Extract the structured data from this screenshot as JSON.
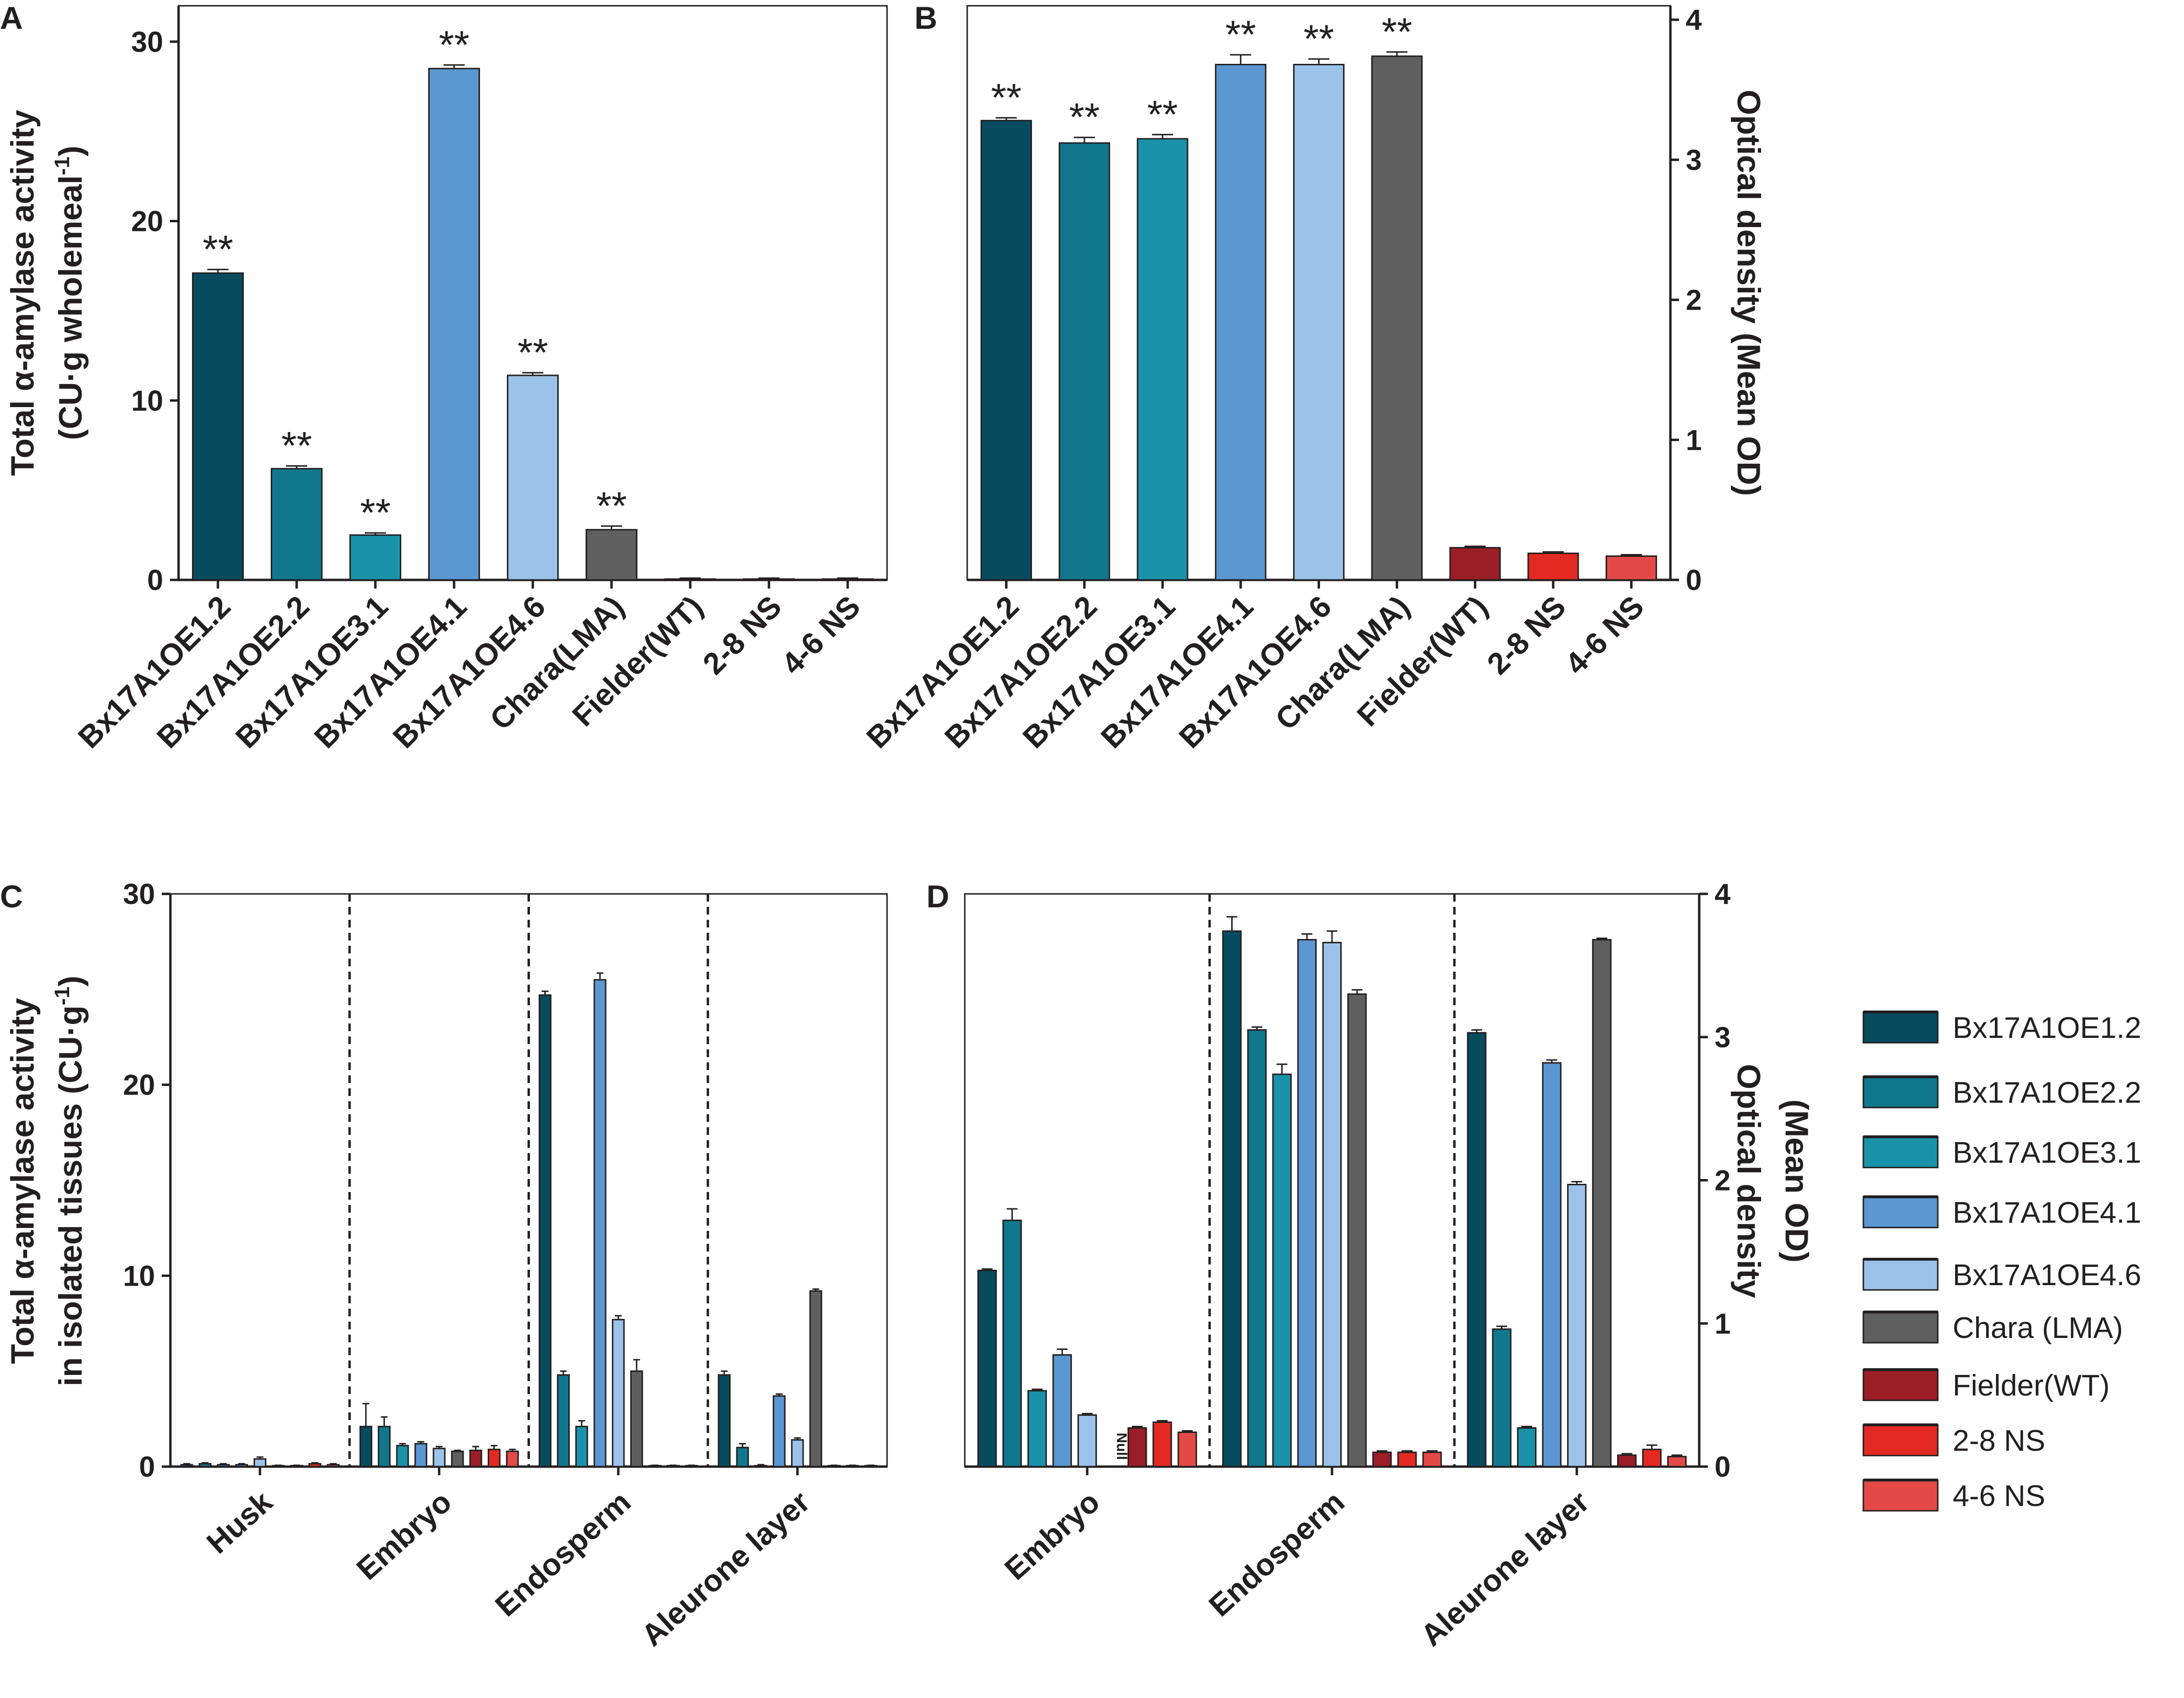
{
  "colors": {
    "Bx17A1OE1.2": "#074b5e",
    "Bx17A1OE2.2": "#11778c",
    "Bx17A1OE3.1": "#1a93aa",
    "Bx17A1OE4.1": "#5b97d1",
    "Bx17A1OE4.6": "#9bc2e8",
    "Chara(LMA)": "#5f5f5f",
    "Fielder(WT)": "#9b1d25",
    "2-8 NS": "#e32a22",
    "4-6 NS": "#e34a47",
    "axis": "#231f20"
  },
  "legend": {
    "items": [
      {
        "label": "Bx17A1OE1.2",
        "color": "#074b5e"
      },
      {
        "label": "Bx17A1OE2.2",
        "color": "#11778c"
      },
      {
        "label": "Bx17A1OE3.1",
        "color": "#1a93aa"
      },
      {
        "label": "Bx17A1OE4.1",
        "color": "#5b97d1"
      },
      {
        "label": "Bx17A1OE4.6",
        "color": "#9bc2e8"
      },
      {
        "label": "Chara (LMA)",
        "color": "#5f5f5f"
      },
      {
        "label": "Fielder(WT)",
        "color": "#9b1d25"
      },
      {
        "label": "2-8 NS",
        "color": "#e32a22"
      },
      {
        "label": "4-6 NS",
        "color": "#e34a47"
      }
    ]
  },
  "chart_data": [
    {
      "panel": "A",
      "type": "bar",
      "ylabel_line1": "Total α-amylase activity",
      "ylabel_line2": "(CU·g wholemeal",
      "ylabel_sup": "-1",
      "ylabel_close": ")",
      "yaxis_side": "left",
      "ylim": [
        0,
        32
      ],
      "yticks": [
        0,
        10,
        20,
        30
      ],
      "categories": [
        "Bx17A1OE1.2",
        "Bx17A1OE2.2",
        "Bx17A1OE3.1",
        "Bx17A1OE4.1",
        "Bx17A1OE4.6",
        "Chara(LMA)",
        "Fielder(WT)",
        "2-8 NS",
        "4-6 NS"
      ],
      "values": [
        17.1,
        6.2,
        2.5,
        28.5,
        11.4,
        2.8,
        0.05,
        0.05,
        0.05
      ],
      "errors": [
        0.2,
        0.15,
        0.12,
        0.2,
        0.15,
        0.2,
        0.05,
        0.05,
        0.05
      ],
      "significance": [
        "**",
        "**",
        "**",
        "**",
        "**",
        "**",
        "",
        "",
        ""
      ]
    },
    {
      "panel": "B",
      "type": "bar",
      "ylabel": "Optical density (Mean OD)",
      "yaxis_side": "right",
      "ylim": [
        0,
        4.1
      ],
      "yticks": [
        0,
        1,
        2,
        3,
        4
      ],
      "categories": [
        "Bx17A1OE1.2",
        "Bx17A1OE2.2",
        "Bx17A1OE3.1",
        "Bx17A1OE4.1",
        "Bx17A1OE4.6",
        "Chara(LMA)",
        "Fielder(WT)",
        "2-8 NS",
        "4-6 NS"
      ],
      "values": [
        3.28,
        3.12,
        3.15,
        3.68,
        3.68,
        3.74,
        0.23,
        0.19,
        0.17
      ],
      "errors": [
        0.02,
        0.04,
        0.03,
        0.07,
        0.04,
        0.03,
        0.01,
        0.01,
        0.01
      ],
      "significance": [
        "**",
        "**",
        "**",
        "**",
        "**",
        "**",
        "",
        "",
        ""
      ]
    },
    {
      "panel": "C",
      "type": "bar",
      "ylabel_line1": "Total α-amylase activity",
      "ylabel_line2": "in isolated tissues (CU·g",
      "ylabel_sup": "-1",
      "ylabel_close": ")",
      "yaxis_side": "left",
      "ylim": [
        0,
        30
      ],
      "yticks": [
        0,
        10,
        20,
        30
      ],
      "groups": [
        "Husk",
        "Embryo",
        "Endosperm",
        "Aleurone layer"
      ],
      "series": [
        {
          "name": "Bx17A1OE1.2",
          "values": [
            0.1,
            2.1,
            24.7,
            4.8
          ],
          "errors": [
            0.05,
            1.2,
            0.2,
            0.2
          ]
        },
        {
          "name": "Bx17A1OE2.2",
          "values": [
            0.15,
            2.1,
            4.8,
            1.0
          ],
          "errors": [
            0.05,
            0.5,
            0.2,
            0.2
          ]
        },
        {
          "name": "Bx17A1OE3.1",
          "values": [
            0.1,
            1.1,
            2.1,
            0.05
          ],
          "errors": [
            0.05,
            0.1,
            0.3,
            0.05
          ]
        },
        {
          "name": "Bx17A1OE4.1",
          "values": [
            0.1,
            1.2,
            25.5,
            3.7
          ],
          "errors": [
            0.05,
            0.1,
            0.35,
            0.1
          ]
        },
        {
          "name": "Bx17A1OE4.6",
          "values": [
            0.4,
            0.95,
            7.7,
            1.4
          ],
          "errors": [
            0.1,
            0.1,
            0.2,
            0.1
          ]
        },
        {
          "name": "Chara(LMA)",
          "values": [
            0.05,
            0.8,
            5.0,
            9.2
          ],
          "errors": [
            0.02,
            0.05,
            0.6,
            0.1
          ]
        },
        {
          "name": "Fielder(WT)",
          "values": [
            0.05,
            0.85,
            0.05,
            0.05
          ],
          "errors": [
            0.02,
            0.2,
            0.02,
            0.02
          ]
        },
        {
          "name": "2-8 NS",
          "values": [
            0.15,
            0.9,
            0.05,
            0.05
          ],
          "errors": [
            0.05,
            0.2,
            0.02,
            0.02
          ]
        },
        {
          "name": "4-6 NS",
          "values": [
            0.1,
            0.8,
            0.05,
            0.05
          ],
          "errors": [
            0.05,
            0.1,
            0.02,
            0.02
          ]
        }
      ]
    },
    {
      "panel": "D",
      "type": "bar",
      "ylabel_line1": "Optical density",
      "ylabel_line2": "(Mean OD)",
      "yaxis_side": "right",
      "ylim": [
        0,
        4
      ],
      "yticks": [
        0,
        1,
        2,
        3,
        4
      ],
      "groups": [
        "Embryo",
        "Endosperm",
        "Aleurone layer"
      ],
      "null_label": "Null",
      "null_at": {
        "group": 0,
        "series": 5
      },
      "series": [
        {
          "name": "Bx17A1OE1.2",
          "values": [
            1.37,
            3.74,
            3.03
          ],
          "errors": [
            0.01,
            0.1,
            0.02
          ]
        },
        {
          "name": "Bx17A1OE2.2",
          "values": [
            1.72,
            3.05,
            0.96
          ],
          "errors": [
            0.08,
            0.02,
            0.02
          ]
        },
        {
          "name": "Bx17A1OE3.1",
          "values": [
            0.53,
            2.74,
            0.27
          ],
          "errors": [
            0.01,
            0.07,
            0.01
          ]
        },
        {
          "name": "Bx17A1OE4.1",
          "values": [
            0.78,
            3.68,
            2.82
          ],
          "errors": [
            0.04,
            0.04,
            0.02
          ]
        },
        {
          "name": "Bx17A1OE4.6",
          "values": [
            0.36,
            3.66,
            1.97
          ],
          "errors": [
            0.01,
            0.08,
            0.02
          ]
        },
        {
          "name": "Chara(LMA)",
          "values": [
            null,
            3.3,
            3.68
          ],
          "errors": [
            null,
            0.03,
            0.01
          ]
        },
        {
          "name": "Fielder(WT)",
          "values": [
            0.27,
            0.1,
            0.08
          ],
          "errors": [
            0.01,
            0.01,
            0.01
          ]
        },
        {
          "name": "2-8 NS",
          "values": [
            0.31,
            0.1,
            0.12
          ],
          "errors": [
            0.01,
            0.01,
            0.03
          ]
        },
        {
          "name": "4-6 NS",
          "values": [
            0.24,
            0.1,
            0.07
          ],
          "errors": [
            0.01,
            0.01,
            0.01
          ]
        }
      ]
    }
  ]
}
